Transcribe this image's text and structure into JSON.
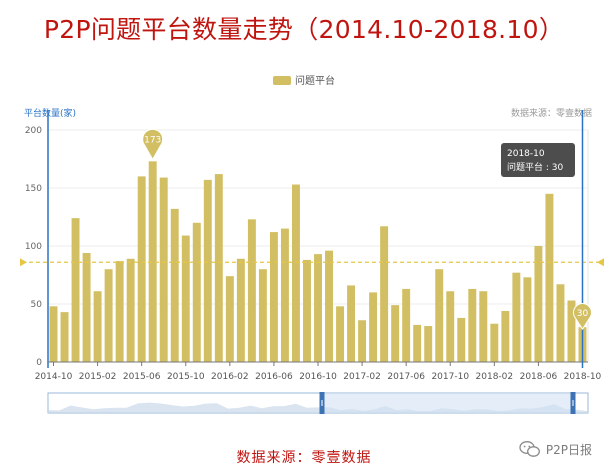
{
  "title": "P2P问题平台数量走势（2014.10-2018.10）",
  "legend_label": "问题平台",
  "y_axis_title": "平台数量(家)",
  "source_top": "数据来源：零壹数据",
  "bottom_source": "数据来源：零壹数据",
  "watermark": "P2P日报",
  "tooltip": {
    "date": "2018-10",
    "text": "问题平台 : 30"
  },
  "colors": {
    "bar": "#d2bf63",
    "title": "#c0140f",
    "accent": "#2a73c7",
    "avg_line": "#e6c646",
    "tooltip_bg": "#3e3e3e"
  },
  "chart_data": {
    "type": "bar",
    "categories": [
      "2014-10",
      "2014-11",
      "2014-12",
      "2015-01",
      "2015-02",
      "2015-03",
      "2015-04",
      "2015-05",
      "2015-06",
      "2015-07",
      "2015-08",
      "2015-09",
      "2015-10",
      "2015-11",
      "2015-12",
      "2016-01",
      "2016-02",
      "2016-03",
      "2016-04",
      "2016-05",
      "2016-06",
      "2016-07",
      "2016-08",
      "2016-09",
      "2016-10",
      "2016-11",
      "2016-12",
      "2017-01",
      "2017-02",
      "2017-03",
      "2017-04",
      "2017-05",
      "2017-06",
      "2017-07",
      "2017-08",
      "2017-09",
      "2017-10",
      "2017-11",
      "2017-12",
      "2018-01",
      "2018-02",
      "2018-03",
      "2018-04",
      "2018-05",
      "2018-06",
      "2018-07",
      "2018-08",
      "2018-09",
      "2018-10"
    ],
    "x_tick_labels": [
      "2014-10",
      "2015-02",
      "2015-06",
      "2015-10",
      "2016-02",
      "2016-06",
      "2016-10",
      "2017-02",
      "2017-06",
      "2017-10",
      "2018-02",
      "2018-06",
      "2018-10"
    ],
    "series": [
      {
        "name": "问题平台",
        "values": [
          48,
          43,
          124,
          94,
          61,
          80,
          87,
          89,
          160,
          173,
          159,
          132,
          109,
          120,
          157,
          162,
          74,
          89,
          123,
          80,
          112,
          115,
          153,
          88,
          93,
          96,
          48,
          66,
          36,
          60,
          117,
          49,
          63,
          32,
          31,
          80,
          61,
          38,
          63,
          61,
          33,
          44,
          77,
          73,
          100,
          145,
          67,
          53,
          30
        ]
      }
    ],
    "xlabel": "",
    "ylabel": "平台数量(家)",
    "ylim": [
      0,
      200
    ],
    "y_ticks": [
      0,
      50,
      100,
      150,
      200
    ],
    "average_line": 86,
    "max_marker": {
      "category": "2015-07",
      "value": 173
    },
    "last_marker": {
      "category": "2018-10",
      "value": 30
    },
    "grid": true,
    "legend_position": "top-center"
  }
}
